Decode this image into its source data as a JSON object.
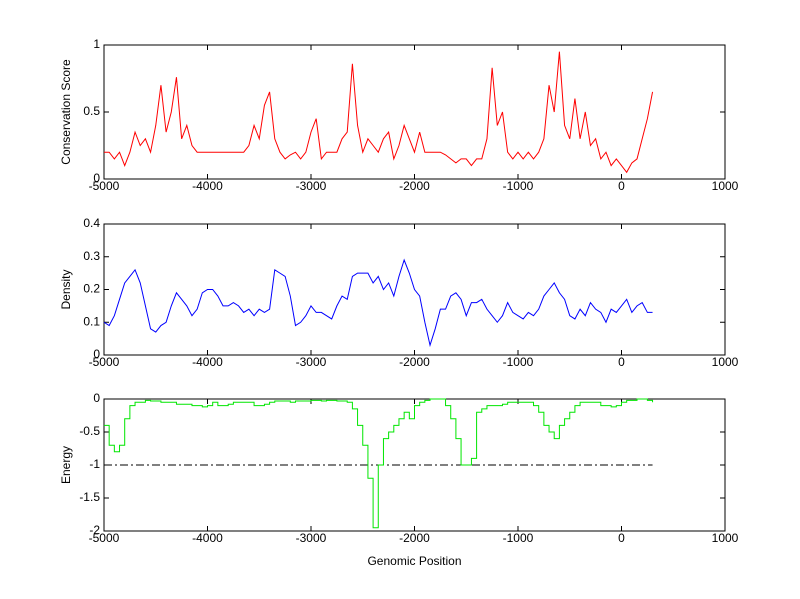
{
  "chart_data": [
    {
      "type": "line",
      "ylabel": "Conservation Score",
      "color": "#ff0000",
      "xlim": [
        -5000,
        1000
      ],
      "xticks": [
        -5000,
        -4000,
        -3000,
        -2000,
        -1000,
        0,
        1000
      ],
      "ylim": [
        0,
        1
      ],
      "yticks": [
        0,
        0.5,
        1
      ],
      "x": [
        -5000,
        -4950,
        -4900,
        -4850,
        -4800,
        -4750,
        -4700,
        -4650,
        -4600,
        -4550,
        -4500,
        -4450,
        -4400,
        -4350,
        -4300,
        -4250,
        -4200,
        -4150,
        -4100,
        -4050,
        -4000,
        -3950,
        -3900,
        -3850,
        -3800,
        -3750,
        -3700,
        -3650,
        -3600,
        -3550,
        -3500,
        -3450,
        -3400,
        -3350,
        -3300,
        -3250,
        -3200,
        -3150,
        -3100,
        -3050,
        -3000,
        -2950,
        -2900,
        -2850,
        -2800,
        -2750,
        -2700,
        -2650,
        -2600,
        -2550,
        -2500,
        -2450,
        -2400,
        -2350,
        -2300,
        -2250,
        -2200,
        -2150,
        -2100,
        -2050,
        -2000,
        -1950,
        -1900,
        -1850,
        -1800,
        -1750,
        -1700,
        -1650,
        -1600,
        -1550,
        -1500,
        -1450,
        -1400,
        -1350,
        -1300,
        -1250,
        -1200,
        -1150,
        -1100,
        -1050,
        -1000,
        -950,
        -900,
        -850,
        -800,
        -750,
        -700,
        -650,
        -600,
        -550,
        -500,
        -450,
        -400,
        -350,
        -300,
        -250,
        -200,
        -150,
        -100,
        -50,
        0,
        50,
        100,
        150,
        200,
        250,
        300
      ],
      "values": [
        0.2,
        0.2,
        0.15,
        0.2,
        0.1,
        0.2,
        0.35,
        0.25,
        0.3,
        0.2,
        0.4,
        0.7,
        0.35,
        0.5,
        0.76,
        0.3,
        0.4,
        0.25,
        0.2,
        0.2,
        0.2,
        0.2,
        0.2,
        0.2,
        0.2,
        0.2,
        0.2,
        0.2,
        0.25,
        0.4,
        0.3,
        0.55,
        0.65,
        0.3,
        0.2,
        0.15,
        0.18,
        0.2,
        0.15,
        0.2,
        0.35,
        0.45,
        0.15,
        0.2,
        0.2,
        0.2,
        0.3,
        0.35,
        0.86,
        0.4,
        0.2,
        0.3,
        0.25,
        0.2,
        0.3,
        0.35,
        0.15,
        0.25,
        0.4,
        0.3,
        0.2,
        0.35,
        0.2,
        0.2,
        0.2,
        0.2,
        0.18,
        0.15,
        0.12,
        0.15,
        0.15,
        0.1,
        0.15,
        0.15,
        0.3,
        0.83,
        0.4,
        0.5,
        0.2,
        0.15,
        0.2,
        0.15,
        0.2,
        0.15,
        0.2,
        0.3,
        0.7,
        0.5,
        0.95,
        0.4,
        0.3,
        0.6,
        0.3,
        0.5,
        0.25,
        0.3,
        0.15,
        0.2,
        0.1,
        0.15,
        0.1,
        0.05,
        0.12,
        0.15,
        0.3,
        0.45,
        0.65
      ]
    },
    {
      "type": "line",
      "ylabel": "Density",
      "color": "#0000ff",
      "xlim": [
        -5000,
        1000
      ],
      "xticks": [
        -5000,
        -4000,
        -3000,
        -2000,
        -1000,
        0,
        1000
      ],
      "ylim": [
        0,
        0.4
      ],
      "yticks": [
        0,
        0.1,
        0.2,
        0.3,
        0.4
      ],
      "x": [
        -5000,
        -4950,
        -4900,
        -4850,
        -4800,
        -4750,
        -4700,
        -4650,
        -4600,
        -4550,
        -4500,
        -4450,
        -4400,
        -4350,
        -4300,
        -4250,
        -4200,
        -4150,
        -4100,
        -4050,
        -4000,
        -3950,
        -3900,
        -3850,
        -3800,
        -3750,
        -3700,
        -3650,
        -3600,
        -3550,
        -3500,
        -3450,
        -3400,
        -3350,
        -3300,
        -3250,
        -3200,
        -3150,
        -3100,
        -3050,
        -3000,
        -2950,
        -2900,
        -2850,
        -2800,
        -2750,
        -2700,
        -2650,
        -2600,
        -2550,
        -2500,
        -2450,
        -2400,
        -2350,
        -2300,
        -2250,
        -2200,
        -2150,
        -2100,
        -2050,
        -2000,
        -1950,
        -1900,
        -1850,
        -1800,
        -1750,
        -1700,
        -1650,
        -1600,
        -1550,
        -1500,
        -1450,
        -1400,
        -1350,
        -1300,
        -1250,
        -1200,
        -1150,
        -1100,
        -1050,
        -1000,
        -950,
        -900,
        -850,
        -800,
        -750,
        -700,
        -650,
        -600,
        -550,
        -500,
        -450,
        -400,
        -350,
        -300,
        -250,
        -200,
        -150,
        -100,
        -50,
        0,
        50,
        100,
        150,
        200,
        250,
        300
      ],
      "values": [
        0.1,
        0.09,
        0.12,
        0.17,
        0.22,
        0.24,
        0.26,
        0.22,
        0.15,
        0.08,
        0.07,
        0.09,
        0.1,
        0.15,
        0.19,
        0.17,
        0.15,
        0.12,
        0.14,
        0.19,
        0.2,
        0.2,
        0.18,
        0.15,
        0.15,
        0.16,
        0.15,
        0.13,
        0.14,
        0.12,
        0.14,
        0.13,
        0.14,
        0.26,
        0.25,
        0.24,
        0.18,
        0.09,
        0.1,
        0.12,
        0.15,
        0.13,
        0.13,
        0.12,
        0.11,
        0.15,
        0.18,
        0.17,
        0.24,
        0.25,
        0.25,
        0.25,
        0.22,
        0.24,
        0.2,
        0.22,
        0.18,
        0.24,
        0.29,
        0.25,
        0.2,
        0.18,
        0.1,
        0.03,
        0.08,
        0.14,
        0.14,
        0.18,
        0.19,
        0.17,
        0.12,
        0.16,
        0.16,
        0.17,
        0.14,
        0.12,
        0.1,
        0.12,
        0.16,
        0.13,
        0.12,
        0.11,
        0.13,
        0.12,
        0.14,
        0.18,
        0.2,
        0.22,
        0.19,
        0.17,
        0.12,
        0.11,
        0.14,
        0.12,
        0.16,
        0.14,
        0.13,
        0.1,
        0.14,
        0.13,
        0.15,
        0.17,
        0.13,
        0.15,
        0.16,
        0.13,
        0.13
      ]
    },
    {
      "type": "step",
      "ylabel": "Energy",
      "xlabel": "Genomic Position",
      "color": "#00e600",
      "threshold": -1,
      "xlim": [
        -5000,
        1000
      ],
      "xticks": [
        -5000,
        -4000,
        -3000,
        -2000,
        -1000,
        0,
        1000
      ],
      "ylim": [
        -2,
        0
      ],
      "yticks": [
        0,
        -0.5,
        -1,
        -1.5,
        -2
      ],
      "x": [
        -5000,
        -4950,
        -4900,
        -4850,
        -4800,
        -4750,
        -4700,
        -4650,
        -4600,
        -4550,
        -4500,
        -4450,
        -4400,
        -4350,
        -4300,
        -4250,
        -4200,
        -4150,
        -4100,
        -4050,
        -4000,
        -3950,
        -3900,
        -3850,
        -3800,
        -3750,
        -3700,
        -3650,
        -3600,
        -3550,
        -3500,
        -3450,
        -3400,
        -3350,
        -3300,
        -3250,
        -3200,
        -3150,
        -3100,
        -3050,
        -3000,
        -2950,
        -2900,
        -2850,
        -2800,
        -2750,
        -2700,
        -2650,
        -2600,
        -2550,
        -2500,
        -2450,
        -2400,
        -2350,
        -2300,
        -2250,
        -2200,
        -2150,
        -2100,
        -2050,
        -2000,
        -1950,
        -1900,
        -1850,
        -1800,
        -1750,
        -1700,
        -1650,
        -1600,
        -1550,
        -1500,
        -1450,
        -1400,
        -1350,
        -1300,
        -1250,
        -1200,
        -1150,
        -1100,
        -1050,
        -1000,
        -950,
        -900,
        -850,
        -800,
        -750,
        -700,
        -650,
        -600,
        -550,
        -500,
        -450,
        -400,
        -350,
        -300,
        -250,
        -200,
        -150,
        -100,
        -50,
        0,
        50,
        100,
        150,
        200,
        250,
        300
      ],
      "values": [
        -0.4,
        -0.7,
        -0.8,
        -0.7,
        -0.3,
        -0.1,
        -0.05,
        -0.05,
        -0.02,
        -0.03,
        -0.03,
        -0.05,
        -0.05,
        -0.05,
        -0.08,
        -0.08,
        -0.08,
        -0.1,
        -0.1,
        -0.12,
        -0.1,
        -0.05,
        -0.1,
        -0.1,
        -0.08,
        -0.05,
        -0.05,
        -0.05,
        -0.05,
        -0.1,
        -0.1,
        -0.08,
        -0.05,
        -0.03,
        -0.03,
        -0.03,
        -0.05,
        -0.03,
        -0.03,
        -0.03,
        -0.02,
        -0.02,
        -0.03,
        -0.02,
        -0.02,
        -0.03,
        -0.03,
        -0.05,
        -0.15,
        -0.4,
        -0.7,
        -1.2,
        -1.95,
        -1,
        -0.6,
        -0.5,
        -0.4,
        -0.3,
        -0.2,
        -0.3,
        -0.1,
        -0.05,
        -0.02,
        0,
        0,
        0,
        -0.1,
        -0.3,
        -0.6,
        -1,
        -1,
        -0.9,
        -0.2,
        -0.15,
        -0.1,
        -0.1,
        -0.1,
        -0.08,
        -0.05,
        -0.05,
        -0.05,
        -0.05,
        -0.05,
        -0.1,
        -0.2,
        -0.4,
        -0.5,
        -0.6,
        -0.4,
        -0.3,
        -0.2,
        -0.1,
        -0.05,
        -0.05,
        -0.05,
        -0.05,
        -0.1,
        -0.1,
        -0.12,
        -0.1,
        -0.05,
        -0.02,
        -0.02,
        0,
        0,
        -0.02,
        -0.05
      ]
    }
  ]
}
